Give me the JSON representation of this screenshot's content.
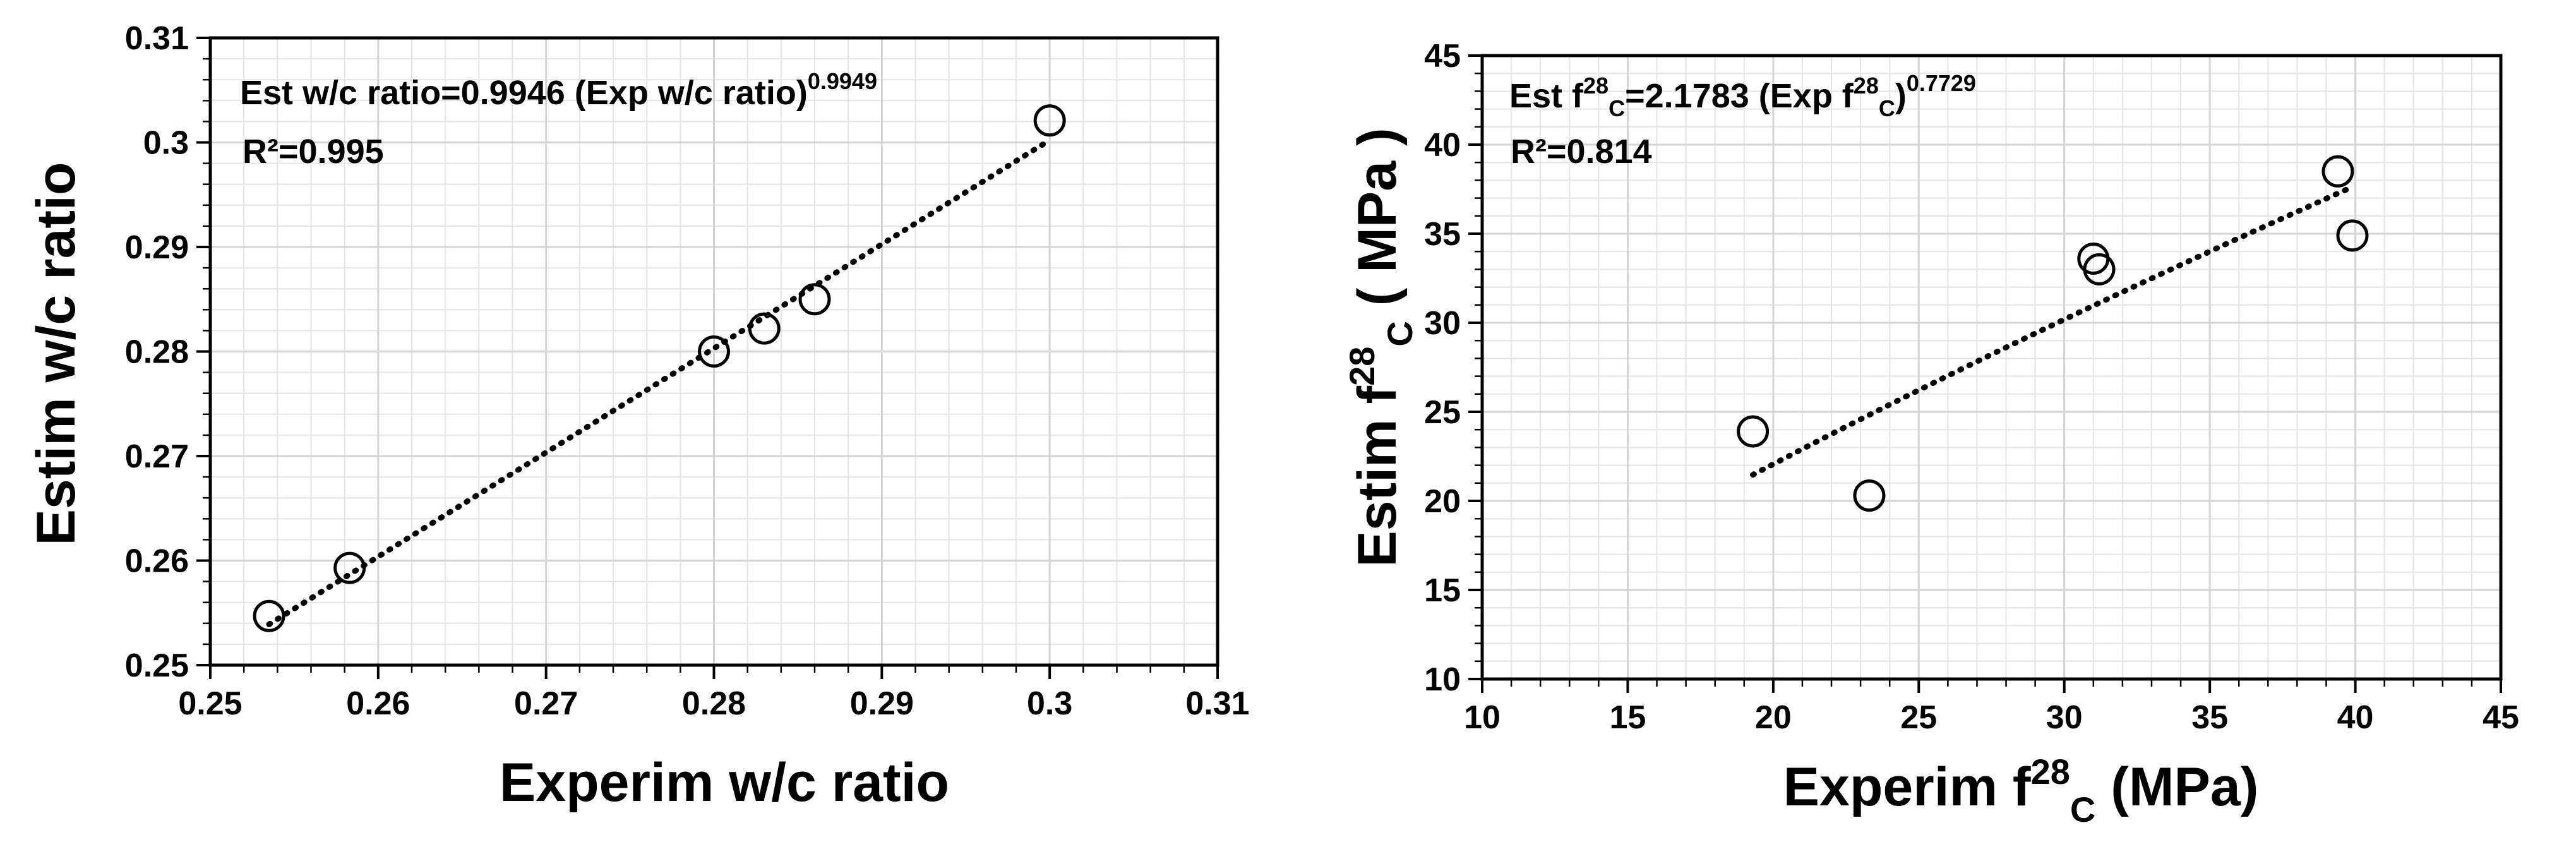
{
  "chart_data": [
    {
      "type": "scatter",
      "xlabel": "Experim w/c ratio",
      "ylabel": "Estim w/c ratio",
      "xlim": [
        0.25,
        0.31
      ],
      "ylim": [
        0.25,
        0.31
      ],
      "x_ticks": [
        "0.25",
        "0.26",
        "0.27",
        "0.28",
        "0.29",
        "0.3",
        "0.31"
      ],
      "y_ticks": [
        "0.25",
        "0.26",
        "0.27",
        "0.28",
        "0.29",
        "0.3",
        "0.31"
      ],
      "grid": true,
      "equation": {
        "main": "Est w/c ratio=0.9946 (Exp w/c ratio)",
        "exponent": "0.9949"
      },
      "r2": "R²=0.995",
      "points": [
        {
          "x": 0.2535,
          "y": 0.2547
        },
        {
          "x": 0.2583,
          "y": 0.2593
        },
        {
          "x": 0.28,
          "y": 0.28
        },
        {
          "x": 0.283,
          "y": 0.2822
        },
        {
          "x": 0.286,
          "y": 0.285
        },
        {
          "x": 0.3,
          "y": 0.3021
        }
      ],
      "fit": {
        "a": 0.9946,
        "b": 0.9949,
        "x_start": 0.2535,
        "x_end": 0.3
      }
    },
    {
      "type": "scatter",
      "xlabel": {
        "main": "Experim f",
        "sup": "28",
        "sub": "C",
        "tail": " (MPa)"
      },
      "ylabel": {
        "main": "Estim f",
        "sup": "28",
        "sub": "C",
        "tail": " ( MPa )"
      },
      "xlim": [
        10,
        45
      ],
      "ylim": [
        10,
        45
      ],
      "x_ticks": [
        "10",
        "15",
        "20",
        "25",
        "30",
        "35",
        "40",
        "45"
      ],
      "y_ticks": [
        "10",
        "15",
        "20",
        "25",
        "30",
        "35",
        "40",
        "45"
      ],
      "grid": true,
      "equation": {
        "p1": "Est f",
        "sup1": "28",
        "sub1": "C",
        "p2": "=2.1783 (Exp f",
        "sup2": "28",
        "sub2": "C",
        "p3": ")",
        "exponent": "0.7729"
      },
      "r2": "R²=0.814",
      "points": [
        {
          "x": 19.3,
          "y": 23.9
        },
        {
          "x": 23.3,
          "y": 20.3
        },
        {
          "x": 31.0,
          "y": 33.6
        },
        {
          "x": 31.2,
          "y": 33.0
        },
        {
          "x": 39.4,
          "y": 38.5
        },
        {
          "x": 39.9,
          "y": 34.9
        }
      ],
      "fit": {
        "a": 2.1783,
        "b": 0.7729,
        "x_start": 19.3,
        "x_end": 39.9
      }
    }
  ]
}
